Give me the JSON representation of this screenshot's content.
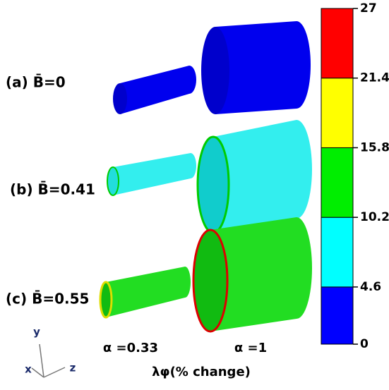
{
  "rows": [
    {
      "label": "(a) B̄=0"
    },
    {
      "label": "(b) B̄=0.41"
    },
    {
      "label": "(c) B̄=0.55"
    }
  ],
  "columns": [
    "α =0.33",
    "α =1"
  ],
  "axes": {
    "y": "y",
    "x": "x",
    "z": "z"
  },
  "colorbar": {
    "title": "λφ(% change)",
    "ticks": [
      0,
      4.6,
      10.2,
      15.8,
      21.4,
      27
    ],
    "colors": [
      "#0000ff",
      "#00ffff",
      "#00ee00",
      "#ffff00",
      "#ff0000"
    ]
  }
}
